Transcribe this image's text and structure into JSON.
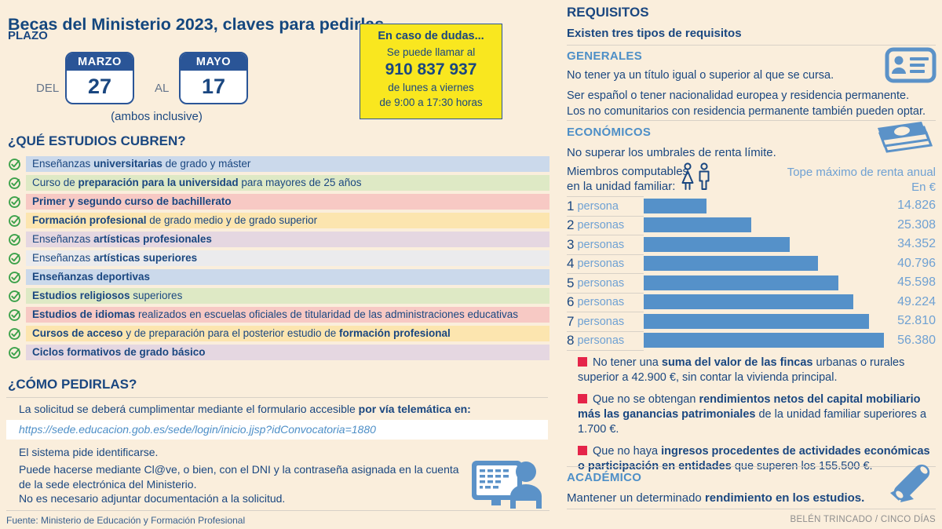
{
  "page": {
    "title": "Becas del Ministerio 2023, claves para pedirlas",
    "source": "Fuente: Ministerio de Educación y Formación Profesional",
    "credit": "BELÉN TRINCADO / CINCO DÍAS"
  },
  "colors": {
    "background": "#FAEEDC",
    "navy": "#1A4780",
    "section_blue": "#4E8FC7",
    "light_blue": "#6FA1D3",
    "bar_blue": "#5591C9",
    "icon_blue": "#5B92C8",
    "check_green": "#3BA14A",
    "bullet_red": "#E52449",
    "highlight_yellow": "#F9E71F",
    "calendar_navy": "#2A5597",
    "row_colors": {
      "blue": "#CBD9EB",
      "green": "#DEE9C5",
      "pink": "#F7C9C4",
      "yellow": "#FCE5AF",
      "mauve": "#E5D7E1",
      "gray": "#EBEBED"
    }
  },
  "plazo": {
    "heading": "PLAZO",
    "del_label": "DEL",
    "al_label": "AL",
    "start_month": "MARZO",
    "start_day": "27",
    "end_month": "MAYO",
    "end_day": "17",
    "note": "(ambos inclusive)"
  },
  "dudas": {
    "title": "En caso de dudas...",
    "line1": "Se puede llamar al",
    "phone": "910 837 937",
    "line2": "de lunes a viernes",
    "line3": "de 9:00 a 17:30 horas"
  },
  "estudios": {
    "heading": "¿QUÉ ESTUDIOS CUBREN?",
    "items": [
      {
        "color": "blue",
        "segments": [
          {
            "t": "Enseñanzas ",
            "b": false
          },
          {
            "t": "universitarias",
            "b": true
          },
          {
            "t": " de grado y máster",
            "b": false
          }
        ]
      },
      {
        "color": "green",
        "segments": [
          {
            "t": "Curso de ",
            "b": false
          },
          {
            "t": "preparación para la universidad",
            "b": true
          },
          {
            "t": " para mayores de 25 años",
            "b": false
          }
        ]
      },
      {
        "color": "pink",
        "segments": [
          {
            "t": "Primer y segundo curso de bachillerato",
            "b": true
          }
        ]
      },
      {
        "color": "yellow",
        "segments": [
          {
            "t": "Formación profesional",
            "b": true
          },
          {
            "t": " de grado medio y de grado superior",
            "b": false
          }
        ]
      },
      {
        "color": "mauve",
        "segments": [
          {
            "t": "Enseñanzas ",
            "b": false
          },
          {
            "t": "artísticas profesionales",
            "b": true
          }
        ]
      },
      {
        "color": "gray",
        "segments": [
          {
            "t": "Enseñanzas ",
            "b": false
          },
          {
            "t": "artísticas superiores",
            "b": true
          }
        ]
      },
      {
        "color": "blue",
        "segments": [
          {
            "t": "Enseñanzas deportivas",
            "b": true
          }
        ]
      },
      {
        "color": "green",
        "segments": [
          {
            "t": "Estudios religiosos",
            "b": true
          },
          {
            "t": " superiores",
            "b": false
          }
        ]
      },
      {
        "color": "pink",
        "segments": [
          {
            "t": "Estudios de idiomas",
            "b": true
          },
          {
            "t": " realizados en escuelas oficiales de titularidad de las administraciones educativas",
            "b": false
          }
        ]
      },
      {
        "color": "yellow",
        "segments": [
          {
            "t": "Cursos de acceso",
            "b": true
          },
          {
            "t": " y de preparación para el posterior estudio de ",
            "b": false
          },
          {
            "t": "formación profesional",
            "b": true
          }
        ]
      },
      {
        "color": "mauve",
        "segments": [
          {
            "t": "Ciclos formativos de grado básico",
            "b": true
          }
        ]
      }
    ]
  },
  "como": {
    "heading": "¿CÓMO PEDIRLAS?",
    "intro": [
      {
        "t": "La solicitud se deberá cumplimentar mediante el formulario accesible ",
        "b": false
      },
      {
        "t": "por vía telemática en:",
        "b": true
      }
    ],
    "url": "https://sede.educacion.gob.es/sede/login/inicio.jjsp?idConvocatoria=1880",
    "steps": [
      "El sistema pide identificarse.",
      "Puede hacerse mediante Cl@ve, o bien, con el DNI y la contraseña asignada en la cuenta de la sede electrónica del Ministerio.",
      "No es necesario adjuntar documentación a la solicitud."
    ]
  },
  "requisitos": {
    "heading": "REQUISITOS",
    "subheading": "Existen tres tipos de requisitos",
    "generales": {
      "heading": "GENERALES",
      "point1": "No tener ya un título igual o superior al que se cursa.",
      "point2_line1": "Ser español o tener nacionalidad europea y residencia permanente.",
      "point2_line2": "Los no comunitarios con residencia permanente también pueden optar."
    },
    "economicos": {
      "heading": "ECONÓMICOS",
      "intro": "No superar los umbrales de renta límite.",
      "members_label_1": "Miembros computables",
      "members_label_2": "en la unidad familiar:",
      "bullets": [
        {
          "segments": [
            {
              "t": "No tener una ",
              "b": false
            },
            {
              "t": "suma del valor de las fincas",
              "b": true
            },
            {
              "t": " urbanas o rurales superior a 42.900 €, sin contar la vivienda principal.",
              "b": false
            }
          ]
        },
        {
          "segments": [
            {
              "t": "Que no se obtengan ",
              "b": false
            },
            {
              "t": "rendimientos netos del capital mobiliario más las ganancias patrimoniales",
              "b": true
            },
            {
              "t": " de la unidad familiar superiores a 1.700 €.",
              "b": false
            }
          ]
        },
        {
          "segments": [
            {
              "t": "Que no haya ",
              "b": false
            },
            {
              "t": "ingresos procedentes de actividades económicas o participación en entidades",
              "b": true
            },
            {
              "t": " que superen los 155.500 €.",
              "b": false
            }
          ]
        }
      ]
    },
    "academico": {
      "heading": "ACADÉMICO",
      "text": [
        {
          "t": "Mantener un determinado ",
          "b": false
        },
        {
          "t": "rendimiento en los estudios.",
          "b": true
        }
      ]
    }
  },
  "chart_data": {
    "type": "bar",
    "orientation": "horizontal",
    "title": "Tope máximo de renta anual",
    "unit_label": "En €",
    "categories": [
      "1 persona",
      "2 personas",
      "3 personas",
      "4 personas",
      "5 personas",
      "6 personas",
      "7 personas",
      "8 personas"
    ],
    "values": [
      14826,
      25308,
      34352,
      40796,
      45598,
      49224,
      52810,
      56380
    ],
    "display_values": [
      "14.826",
      "25.308",
      "34.352",
      "40.796",
      "45.598",
      "49.224",
      "52.810",
      "56.380"
    ],
    "xlim": [
      0,
      56380
    ],
    "bar_color": "#5591C9",
    "grid": false,
    "legend": "none"
  }
}
